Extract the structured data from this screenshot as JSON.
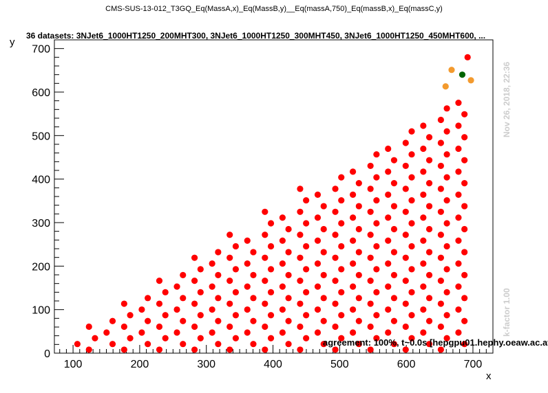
{
  "chart_data": {
    "type": "scatter",
    "title": "CMS-SUS-13-012_T3GQ_Eq(MassA,x)_Eq(MassB,y)__Eq(massA,750)_Eq(massB,x)_Eq(massC,y)",
    "subtitle": "36 datasets: 3NJet6_1000HT1250_200MHT300, 3NJet6_1000HT1250_300MHT450, 3NJet6_1000HT1250_450MHT600,  ...",
    "xlabel": "x",
    "ylabel": "y",
    "xlim": [
      72,
      730
    ],
    "ylim": [
      0,
      720
    ],
    "xticks": [
      100,
      200,
      300,
      400,
      500,
      600,
      700
    ],
    "yticks": [
      0,
      100,
      200,
      300,
      400,
      500,
      600,
      700
    ],
    "grid": false,
    "side_label_date": "Nov 26, 2018, 22:36",
    "side_label_kfactor": "k-factor 1.00",
    "agreement_text": "agreement: 100%, t~0.0s [hepgpu01.hephy.oeaw.ac.at]",
    "colors": {
      "default": "#ff0000",
      "orange": "#f39a2e",
      "green": "#006400"
    },
    "grid_points": {
      "x_start": 102,
      "x_step": 26.4,
      "y_step": 26.4,
      "columns": 23,
      "x_shift": 4.5,
      "y_shift": 10
    },
    "special_points": [
      {
        "x": 668,
        "y": 651,
        "color": "orange"
      },
      {
        "x": 659,
        "y": 613,
        "color": "orange"
      },
      {
        "x": 697,
        "y": 627,
        "color": "orange"
      },
      {
        "x": 684,
        "y": 640,
        "color": "green"
      },
      {
        "x": 692,
        "y": 680,
        "color": "red"
      }
    ]
  }
}
